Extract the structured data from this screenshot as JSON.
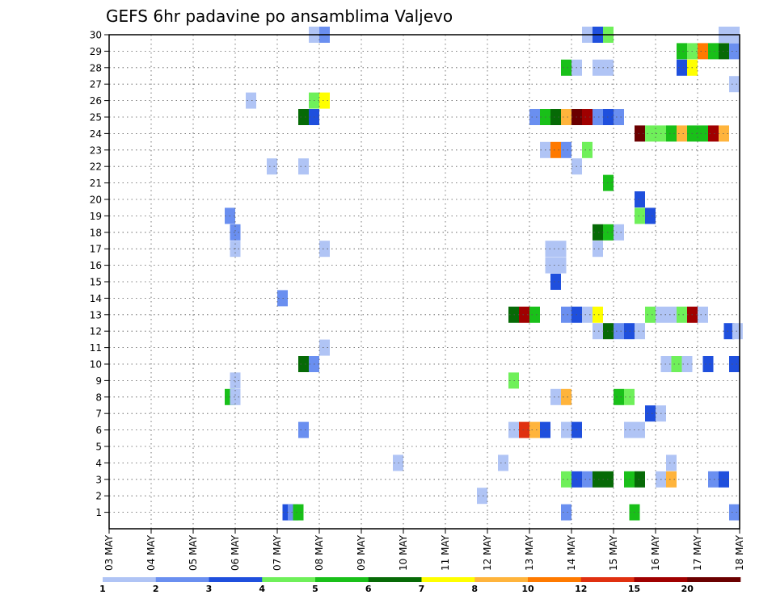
{
  "chart_data": {
    "type": "heatmap",
    "title": "GEFS 6hr padavine po ansamblima Valjevo",
    "x_tick_labels": [
      "03 MAY",
      "04 MAY",
      "05 MAY",
      "06 MAY",
      "07 MAY",
      "08 MAY",
      "09 MAY",
      "10 MAY",
      "11 MAY",
      "12 MAY",
      "13 MAY",
      "14 MAY",
      "15 MAY",
      "16 MAY",
      "17 MAY",
      "18 MAY"
    ],
    "y_tick_labels": [
      "1",
      "2",
      "3",
      "4",
      "5",
      "6",
      "7",
      "8",
      "9",
      "10",
      "11",
      "12",
      "13",
      "14",
      "15",
      "16",
      "17",
      "18",
      "19",
      "20",
      "21",
      "22",
      "23",
      "24",
      "25",
      "26",
      "27",
      "28",
      "29",
      "30"
    ],
    "x_units": "6-hour steps from 03 MAY 00Z",
    "x_range_steps": [
      0,
      60
    ],
    "y_range": [
      0,
      30
    ],
    "grid": true,
    "color_levels": [
      1,
      2,
      3,
      4,
      5,
      6,
      7,
      8,
      10,
      12,
      15,
      20
    ],
    "colorbar_labels": [
      "1",
      "2",
      "3",
      "4",
      "5",
      "6",
      "7",
      "8",
      "10",
      "12",
      "15",
      "20"
    ],
    "colors": [
      "#b0c4f5",
      "#6a8ff0",
      "#1f4fdd",
      "#6ff05a",
      "#19c019",
      "#066a06",
      "#ffff00",
      "#ffb43c",
      "#ff7a00",
      "#e03010",
      "#a00000",
      "#6b0000"
    ],
    "cells": [
      [
        1,
        17.0,
        2
      ],
      [
        1,
        17.5,
        1
      ],
      [
        1,
        18.0,
        4
      ],
      [
        1,
        43.5,
        1
      ],
      [
        1,
        50.0,
        4
      ],
      [
        1,
        59.5,
        1
      ],
      [
        2,
        35.5,
        0
      ],
      [
        3,
        43.5,
        3
      ],
      [
        3,
        44.5,
        2
      ],
      [
        3,
        45.5,
        1
      ],
      [
        3,
        46.5,
        5
      ],
      [
        3,
        47.5,
        5
      ],
      [
        3,
        49.5,
        4
      ],
      [
        3,
        50.5,
        5
      ],
      [
        3,
        52.5,
        0
      ],
      [
        3,
        53.5,
        7
      ],
      [
        3,
        57.5,
        1
      ],
      [
        3,
        58.5,
        2
      ],
      [
        4,
        27.5,
        0
      ],
      [
        4,
        37.5,
        0
      ],
      [
        4,
        53.5,
        0
      ],
      [
        6,
        18.5,
        1
      ],
      [
        6,
        38.5,
        0
      ],
      [
        6,
        39.5,
        9
      ],
      [
        6,
        40.5,
        7
      ],
      [
        6,
        41.5,
        2
      ],
      [
        6,
        43.5,
        0
      ],
      [
        6,
        44.5,
        2
      ],
      [
        6,
        49.5,
        0
      ],
      [
        6,
        50.5,
        0
      ],
      [
        7,
        51.5,
        2
      ],
      [
        7,
        52.5,
        0
      ],
      [
        8,
        11.5,
        4
      ],
      [
        8,
        12.0,
        0
      ],
      [
        8,
        42.5,
        0
      ],
      [
        8,
        43.5,
        7
      ],
      [
        8,
        48.5,
        4
      ],
      [
        8,
        49.5,
        3
      ],
      [
        9,
        12.0,
        0
      ],
      [
        9,
        38.5,
        3
      ],
      [
        10,
        18.5,
        5
      ],
      [
        10,
        19.5,
        1
      ],
      [
        10,
        53.0,
        0
      ],
      [
        10,
        54.0,
        3
      ],
      [
        10,
        55.0,
        0
      ],
      [
        10,
        57.0,
        2
      ],
      [
        10,
        59.5,
        2
      ],
      [
        11,
        20.5,
        0
      ],
      [
        12,
        46.5,
        0
      ],
      [
        12,
        47.5,
        5
      ],
      [
        12,
        48.5,
        1
      ],
      [
        12,
        49.5,
        2
      ],
      [
        12,
        50.5,
        0
      ],
      [
        12,
        59.0,
        2
      ],
      [
        12,
        59.8,
        0
      ],
      [
        13,
        38.5,
        5
      ],
      [
        13,
        39.5,
        10
      ],
      [
        13,
        40.5,
        4
      ],
      [
        13,
        43.5,
        1
      ],
      [
        13,
        44.5,
        2
      ],
      [
        13,
        45.5,
        0
      ],
      [
        13,
        46.5,
        6
      ],
      [
        13,
        51.5,
        3
      ],
      [
        13,
        52.5,
        0
      ],
      [
        13,
        53.5,
        0
      ],
      [
        13,
        54.5,
        3
      ],
      [
        13,
        55.5,
        10
      ],
      [
        13,
        56.5,
        0
      ],
      [
        14,
        16.5,
        1
      ],
      [
        15,
        42.5,
        2
      ],
      [
        16,
        42.0,
        0
      ],
      [
        16,
        43.0,
        0
      ],
      [
        17,
        12.0,
        0
      ],
      [
        17,
        20.5,
        0
      ],
      [
        17,
        42.0,
        0
      ],
      [
        17,
        43.0,
        0
      ],
      [
        17,
        46.5,
        0
      ],
      [
        18,
        12.0,
        1
      ],
      [
        18,
        46.5,
        5
      ],
      [
        18,
        47.5,
        4
      ],
      [
        18,
        48.5,
        0
      ],
      [
        19,
        11.5,
        1
      ],
      [
        19,
        50.5,
        3
      ],
      [
        19,
        51.5,
        2
      ],
      [
        20,
        50.5,
        2
      ],
      [
        21,
        47.5,
        4
      ],
      [
        22,
        15.5,
        0
      ],
      [
        22,
        18.5,
        0
      ],
      [
        22,
        44.5,
        0
      ],
      [
        23,
        41.5,
        0
      ],
      [
        23,
        42.5,
        8
      ],
      [
        23,
        43.5,
        1
      ],
      [
        23,
        45.5,
        3
      ],
      [
        24,
        50.5,
        11
      ],
      [
        24,
        51.5,
        3
      ],
      [
        24,
        52.5,
        3
      ],
      [
        24,
        53.5,
        4
      ],
      [
        24,
        54.5,
        7
      ],
      [
        24,
        55.5,
        4
      ],
      [
        24,
        56.5,
        4
      ],
      [
        24,
        57.5,
        10
      ],
      [
        24,
        58.5,
        7
      ],
      [
        25,
        18.5,
        5
      ],
      [
        25,
        19.5,
        2
      ],
      [
        25,
        40.5,
        1
      ],
      [
        25,
        41.5,
        4
      ],
      [
        25,
        42.5,
        5
      ],
      [
        25,
        43.5,
        7
      ],
      [
        25,
        44.5,
        11
      ],
      [
        25,
        45.5,
        10
      ],
      [
        25,
        46.5,
        1
      ],
      [
        25,
        47.5,
        2
      ],
      [
        25,
        48.5,
        1
      ],
      [
        26,
        13.5,
        0
      ],
      [
        26,
        19.5,
        3
      ],
      [
        26,
        20.5,
        6
      ],
      [
        27,
        59.5,
        0
      ],
      [
        28,
        43.5,
        4
      ],
      [
        28,
        44.5,
        0
      ],
      [
        28,
        46.5,
        0
      ],
      [
        28,
        47.5,
        0
      ],
      [
        28,
        54.5,
        2
      ],
      [
        28,
        55.5,
        6
      ],
      [
        29,
        54.5,
        4
      ],
      [
        29,
        55.5,
        3
      ],
      [
        29,
        56.5,
        8
      ],
      [
        29,
        57.5,
        4
      ],
      [
        29,
        58.5,
        5
      ],
      [
        29,
        59.5,
        1
      ],
      [
        30,
        19.5,
        0
      ],
      [
        30,
        20.5,
        1
      ],
      [
        30,
        45.5,
        0
      ],
      [
        30,
        46.5,
        2
      ],
      [
        30,
        47.5,
        3
      ],
      [
        30,
        58.5,
        0
      ],
      [
        30,
        59.5,
        0
      ]
    ]
  }
}
